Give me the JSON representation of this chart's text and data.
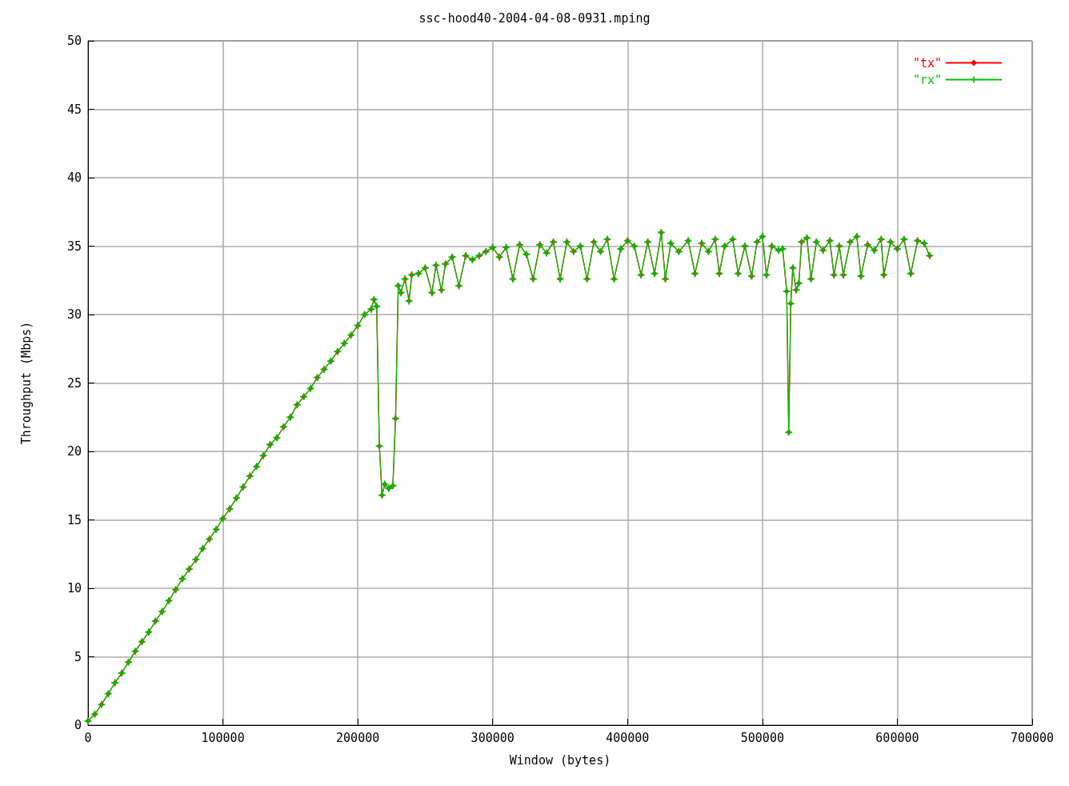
{
  "chart_data": {
    "type": "line",
    "title": "ssc-hood40-2004-04-08-0931.mping",
    "xlabel": "Window (bytes)",
    "ylabel": "Throughput (Mbps)",
    "x": [
      0,
      5000,
      10000,
      15000,
      20000,
      25000,
      30000,
      35000,
      40000,
      45000,
      50000,
      55000,
      60000,
      65000,
      70000,
      75000,
      80000,
      85000,
      90000,
      95000,
      100000,
      105000,
      110000,
      115000,
      120000,
      125000,
      130000,
      135000,
      140000,
      145000,
      150000,
      155000,
      160000,
      165000,
      170000,
      175000,
      180000,
      185000,
      190000,
      195000,
      200000,
      205000,
      210000,
      212000,
      214000,
      216000,
      218000,
      220000,
      223000,
      226000,
      228000,
      230000,
      232000,
      235000,
      238000,
      240000,
      245000,
      250000,
      255000,
      258000,
      262000,
      265000,
      270000,
      275000,
      280000,
      285000,
      290000,
      295000,
      300000,
      305000,
      310000,
      315000,
      320000,
      325000,
      330000,
      335000,
      340000,
      345000,
      350000,
      355000,
      360000,
      365000,
      370000,
      375000,
      380000,
      385000,
      390000,
      395000,
      400000,
      405000,
      410000,
      415000,
      420000,
      425000,
      428000,
      432000,
      438000,
      445000,
      450000,
      455000,
      460000,
      465000,
      468000,
      472000,
      478000,
      482000,
      487000,
      492000,
      496000,
      500000,
      503000,
      507000,
      512000,
      515000,
      518000,
      519500,
      521000,
      522500,
      525000,
      527000,
      529000,
      533000,
      536000,
      540000,
      545000,
      550000,
      553000,
      557000,
      560000,
      565000,
      570000,
      573000,
      578000,
      583000,
      588000,
      590000,
      595000,
      600000,
      605000,
      610000,
      615000,
      620000,
      624000
    ],
    "series": [
      {
        "name": "\"tx\"",
        "color": "#ff0000",
        "marker": "diamond",
        "values": [
          0.3,
          0.8,
          1.5,
          2.3,
          3.1,
          3.8,
          4.6,
          5.4,
          6.1,
          6.8,
          7.6,
          8.3,
          9.1,
          9.9,
          10.7,
          11.4,
          12.1,
          12.9,
          13.6,
          14.3,
          15.1,
          15.8,
          16.6,
          17.4,
          18.2,
          18.9,
          19.7,
          20.5,
          21.0,
          21.8,
          22.5,
          23.4,
          24.0,
          24.6,
          25.4,
          26.0,
          26.6,
          27.3,
          27.9,
          28.5,
          29.2,
          30.0,
          30.4,
          31.1,
          30.6,
          20.4,
          16.8,
          17.6,
          17.3,
          17.5,
          22.4,
          32.1,
          31.6,
          32.6,
          31.0,
          32.9,
          33.0,
          33.4,
          31.6,
          33.6,
          31.8,
          33.7,
          34.2,
          32.1,
          34.3,
          34.0,
          34.3,
          34.6,
          34.9,
          34.2,
          34.9,
          32.6,
          35.1,
          34.4,
          32.6,
          35.1,
          34.5,
          35.3,
          32.6,
          35.3,
          34.6,
          35.0,
          32.6,
          35.3,
          34.6,
          35.5,
          32.6,
          34.8,
          35.4,
          35.0,
          32.9,
          35.3,
          33.0,
          36.0,
          32.6,
          35.2,
          34.6,
          35.4,
          33.0,
          35.2,
          34.6,
          35.5,
          33.0,
          35.0,
          35.5,
          33.0,
          35.0,
          32.8,
          35.3,
          35.7,
          32.9,
          35.0,
          34.7,
          34.8,
          31.7,
          21.4,
          30.8,
          33.4,
          31.8,
          32.3,
          35.3,
          35.6,
          32.6,
          35.3,
          34.7,
          35.4,
          32.9,
          35.0,
          32.9,
          35.3,
          35.7,
          32.8,
          35.1,
          34.7,
          35.5,
          32.9,
          35.3,
          34.8,
          35.5,
          33.0,
          35.4,
          35.2,
          34.3
        ]
      },
      {
        "name": "\"rx\"",
        "color": "#00c000",
        "marker": "cross",
        "values": [
          0.3,
          0.8,
          1.5,
          2.3,
          3.1,
          3.8,
          4.6,
          5.4,
          6.1,
          6.8,
          7.6,
          8.3,
          9.1,
          9.9,
          10.7,
          11.4,
          12.1,
          12.9,
          13.6,
          14.3,
          15.1,
          15.8,
          16.6,
          17.4,
          18.2,
          18.9,
          19.7,
          20.5,
          21.0,
          21.8,
          22.5,
          23.4,
          24.0,
          24.6,
          25.4,
          26.0,
          26.6,
          27.3,
          27.9,
          28.5,
          29.2,
          30.0,
          30.4,
          31.1,
          30.6,
          20.4,
          16.8,
          17.6,
          17.3,
          17.5,
          22.4,
          32.1,
          31.6,
          32.6,
          31.0,
          32.9,
          33.0,
          33.4,
          31.6,
          33.6,
          31.8,
          33.7,
          34.2,
          32.1,
          34.3,
          34.0,
          34.3,
          34.6,
          34.9,
          34.2,
          34.9,
          32.6,
          35.1,
          34.4,
          32.6,
          35.1,
          34.5,
          35.3,
          32.6,
          35.3,
          34.6,
          35.0,
          32.6,
          35.3,
          34.6,
          35.5,
          32.6,
          34.8,
          35.4,
          35.0,
          32.9,
          35.3,
          33.0,
          36.0,
          32.6,
          35.2,
          34.6,
          35.4,
          33.0,
          35.2,
          34.6,
          35.5,
          33.0,
          35.0,
          35.5,
          33.0,
          35.0,
          32.8,
          35.3,
          35.7,
          32.9,
          35.0,
          34.7,
          34.8,
          31.7,
          21.4,
          30.8,
          33.4,
          31.8,
          32.3,
          35.3,
          35.6,
          32.6,
          35.3,
          34.7,
          35.4,
          32.9,
          35.0,
          32.9,
          35.3,
          35.7,
          32.8,
          35.1,
          34.7,
          35.5,
          32.9,
          35.3,
          34.8,
          35.5,
          33.0,
          35.4,
          35.2,
          34.3
        ]
      }
    ],
    "xlim": [
      0,
      700000
    ],
    "xticks": [
      0,
      100000,
      200000,
      300000,
      400000,
      500000,
      600000,
      700000
    ],
    "ylim": [
      0,
      50
    ],
    "yticks": [
      0,
      5,
      10,
      15,
      20,
      25,
      30,
      35,
      40,
      45,
      50
    ],
    "grid": true,
    "legend": "top right",
    "line_style": "solid"
  }
}
